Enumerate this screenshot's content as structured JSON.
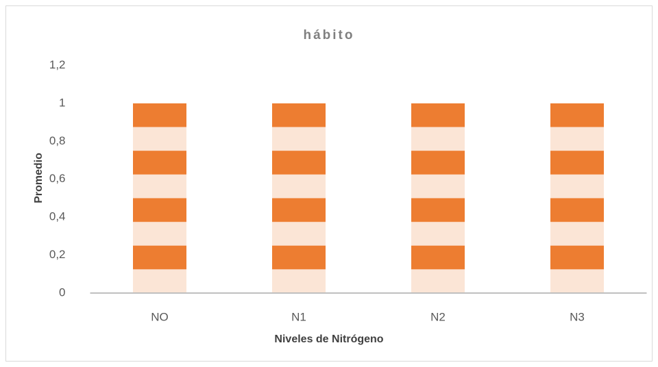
{
  "chart_data": {
    "type": "bar",
    "title": "hábito",
    "x_label": "Niveles de Nitrógeno",
    "y_label": "Promedio",
    "categories": [
      "NO",
      "N1",
      "N2",
      "N3"
    ],
    "values": [
      1,
      1,
      1,
      1
    ],
    "color": "#ed7d31",
    "pattern_color": "#fbe5d6",
    "ylim": [
      0,
      1.2
    ],
    "yticks": [
      0,
      {
        "value": 0.2,
        "label": "0,2"
      },
      {
        "value": 0.4,
        "label": "0,4"
      },
      {
        "value": 0.6,
        "label": "0,6"
      },
      {
        "value": 0.8,
        "label": "0,8"
      },
      1,
      {
        "value": 1.2,
        "label": "1,2"
      }
    ],
    "grid": false
  }
}
